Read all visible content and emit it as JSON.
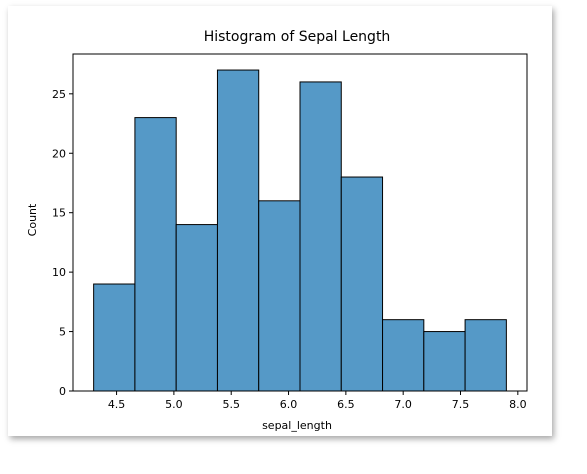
{
  "chart_data": {
    "type": "bar",
    "title": "Histogram of Sepal Length",
    "xlabel": "sepal_length",
    "ylabel": "Count",
    "bin_edges": [
      4.3,
      4.66,
      5.02,
      5.38,
      5.74,
      6.1,
      6.46,
      6.82,
      7.18,
      7.54,
      7.9
    ],
    "values": [
      9,
      23,
      14,
      27,
      16,
      26,
      18,
      6,
      5,
      6
    ],
    "xlim": [
      4.12,
      8.08
    ],
    "ylim": [
      0,
      28.35
    ],
    "xticks": [
      4.5,
      5.0,
      5.5,
      6.0,
      6.5,
      7.0,
      7.5,
      8.0
    ],
    "xtick_labels": [
      "4.5",
      "5.0",
      "5.5",
      "6.0",
      "6.5",
      "7.0",
      "7.5",
      "8.0"
    ],
    "yticks": [
      0,
      5,
      10,
      15,
      20,
      25
    ],
    "ytick_labels": [
      "0",
      "5",
      "10",
      "15",
      "20",
      "25"
    ],
    "bar_color": "#5599c7",
    "edge_color": "#000000",
    "grid": false
  }
}
